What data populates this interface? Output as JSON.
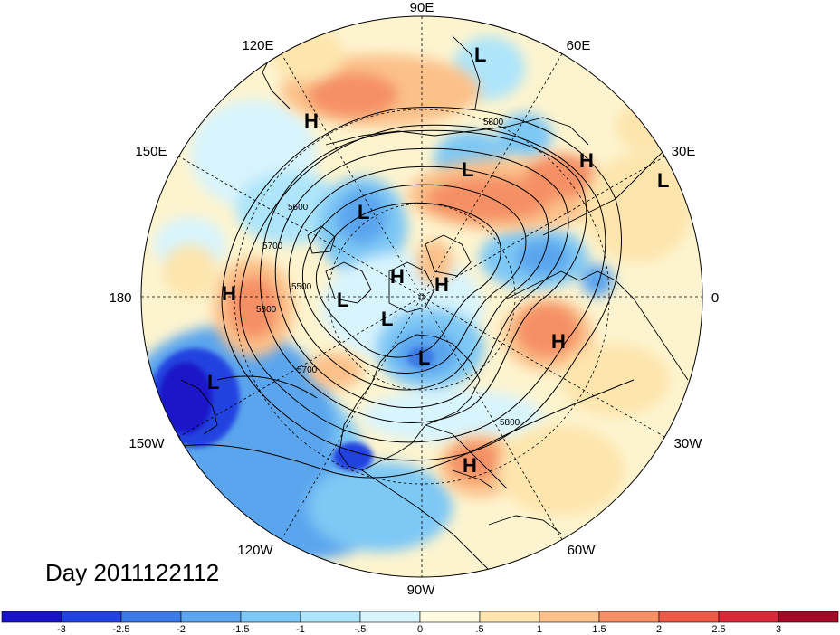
{
  "map": {
    "projection": "north-polar-stereographic",
    "day_label": "Day 2011122112",
    "longitude_labels": [
      {
        "text": "90E",
        "lon": 90
      },
      {
        "text": "60E",
        "lon": 60
      },
      {
        "text": "30E",
        "lon": 30
      },
      {
        "text": "0",
        "lon": 0
      },
      {
        "text": "30W",
        "lon": -30
      },
      {
        "text": "60W",
        "lon": -60
      },
      {
        "text": "90W",
        "lon": -90
      },
      {
        "text": "120W",
        "lon": -120
      },
      {
        "text": "150W",
        "lon": -150
      },
      {
        "text": "180",
        "lon": 180
      },
      {
        "text": "150E",
        "lon": 150
      },
      {
        "text": "120E",
        "lon": 120
      }
    ],
    "pressure_centers": [
      {
        "type": "L",
        "label": "L"
      },
      {
        "type": "H",
        "label": "H"
      },
      {
        "type": "H",
        "label": "H"
      },
      {
        "type": "L",
        "label": "L"
      },
      {
        "type": "L",
        "label": "L"
      },
      {
        "type": "L",
        "label": "L"
      },
      {
        "type": "H",
        "label": "H"
      },
      {
        "type": "H",
        "label": "H"
      },
      {
        "type": "H",
        "label": "H"
      },
      {
        "type": "L",
        "label": "L"
      },
      {
        "type": "L",
        "label": "L"
      },
      {
        "type": "L",
        "label": "L"
      },
      {
        "type": "H",
        "label": "H"
      },
      {
        "type": "L",
        "label": "L"
      },
      {
        "type": "H",
        "label": "H"
      }
    ],
    "contour_labels": [
      "5800",
      "5600",
      "5700",
      "5500",
      "5800",
      "5700",
      "5800"
    ]
  },
  "colorbar": {
    "tick_labels": [
      "-3",
      "-2.5",
      "-2",
      "-1.5",
      "-1",
      "-.5",
      "0",
      ".5",
      "1",
      "1.5",
      "2",
      "2.5",
      "3"
    ],
    "colors": [
      "#1a14c8",
      "#2442e0",
      "#3c7ae6",
      "#5aa5ee",
      "#7ec8f5",
      "#aee5fa",
      "#d8f4fd",
      "#fffbe0",
      "#fde5ad",
      "#fcc18a",
      "#f59065",
      "#ec5a48",
      "#d8283a",
      "#a20a26"
    ]
  }
}
